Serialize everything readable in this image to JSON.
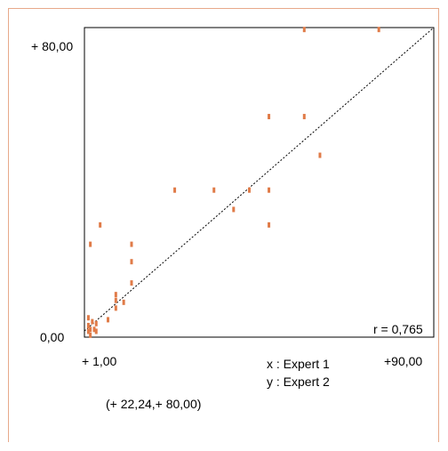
{
  "chart_data": {
    "type": "scatter",
    "title": "",
    "xlabel": "",
    "ylabel": "",
    "xlim": [
      1,
      90
    ],
    "ylim": [
      0,
      80
    ],
    "x_min_label": "+ 1,00",
    "x_max_label": "+90,00",
    "y_min_label": "0,00",
    "y_max_label": "+ 80,00",
    "r_label": "r = 0,765",
    "x_axis_note": "x : Expert 1",
    "y_axis_note": "y : Expert 2",
    "cursor_readout": "(+ 22,24,+ 80,00)",
    "trend_line": {
      "x": [
        1,
        90
      ],
      "y": [
        1.6,
        80
      ]
    },
    "point_color": "#e07b48",
    "frame_color": "#e7a98a",
    "points": [
      {
        "x": 2.0,
        "y": 1.5
      },
      {
        "x": 2.0,
        "y": 3.0
      },
      {
        "x": 2.0,
        "y": 5.0
      },
      {
        "x": 2.5,
        "y": 0.5
      },
      {
        "x": 2.5,
        "y": 2.0
      },
      {
        "x": 3.0,
        "y": 4.0
      },
      {
        "x": 3.5,
        "y": 2.0
      },
      {
        "x": 4.0,
        "y": 1.5
      },
      {
        "x": 4.0,
        "y": 3.5
      },
      {
        "x": 2.5,
        "y": 24.0
      },
      {
        "x": 5.0,
        "y": 29.0
      },
      {
        "x": 7.0,
        "y": 4.5
      },
      {
        "x": 9.0,
        "y": 7.5
      },
      {
        "x": 9.0,
        "y": 9.5
      },
      {
        "x": 9.0,
        "y": 11.0
      },
      {
        "x": 11.0,
        "y": 9.0
      },
      {
        "x": 13.0,
        "y": 14.0
      },
      {
        "x": 13.0,
        "y": 19.5
      },
      {
        "x": 13.0,
        "y": 24.0
      },
      {
        "x": 24.0,
        "y": 38.0
      },
      {
        "x": 34.0,
        "y": 38.0
      },
      {
        "x": 39.0,
        "y": 33.0
      },
      {
        "x": 43.0,
        "y": 38.0
      },
      {
        "x": 48.0,
        "y": 29.0
      },
      {
        "x": 48.0,
        "y": 38.0
      },
      {
        "x": 48.0,
        "y": 57.0
      },
      {
        "x": 57.0,
        "y": 57.0
      },
      {
        "x": 57.0,
        "y": 79.5
      },
      {
        "x": 61.0,
        "y": 47.0
      },
      {
        "x": 76.0,
        "y": 79.5
      }
    ]
  }
}
